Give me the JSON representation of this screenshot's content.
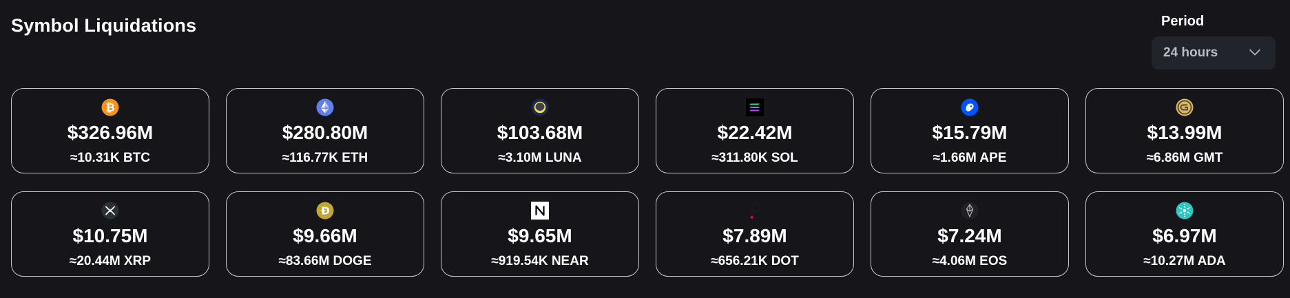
{
  "header": {
    "title": "Symbol Liquidations"
  },
  "period": {
    "label": "Period",
    "selected": "24 hours"
  },
  "cards": [
    {
      "icon": "bitcoin-icon",
      "amount": "$326.96M",
      "qty": "≈10.31K BTC",
      "color": "#f7931a"
    },
    {
      "icon": "ethereum-icon",
      "amount": "$280.80M",
      "qty": "≈116.77K ETH",
      "color": "#627eea"
    },
    {
      "icon": "terra-luna-icon",
      "amount": "$103.68M",
      "qty": "≈3.10M LUNA",
      "color": "#172852"
    },
    {
      "icon": "solana-icon",
      "amount": "$22.42M",
      "qty": "≈311.80K SOL",
      "color": "#000000"
    },
    {
      "icon": "apecoin-icon",
      "amount": "$15.79M",
      "qty": "≈1.66M APE",
      "color": "#0054f9"
    },
    {
      "icon": "stepn-gmt-icon",
      "amount": "$13.99M",
      "qty": "≈6.86M GMT",
      "color": "#d8b76b"
    },
    {
      "icon": "xrp-icon",
      "amount": "$10.75M",
      "qty": "≈20.44M XRP",
      "color": "#23292f"
    },
    {
      "icon": "dogecoin-icon",
      "amount": "$9.66M",
      "qty": "≈83.66M DOGE",
      "color": "#c2a633"
    },
    {
      "icon": "near-icon",
      "amount": "$9.65M",
      "qty": "≈919.54K NEAR",
      "color": "#ffffff"
    },
    {
      "icon": "polkadot-icon",
      "amount": "$7.89M",
      "qty": "≈656.21K DOT",
      "color": "#e6007a"
    },
    {
      "icon": "eos-icon",
      "amount": "$7.24M",
      "qty": "≈4.06M EOS",
      "color": "#2c2c2c"
    },
    {
      "icon": "cardano-icon",
      "amount": "$6.97M",
      "qty": "≈10.27M ADA",
      "color": "#2ec5c5"
    }
  ]
}
